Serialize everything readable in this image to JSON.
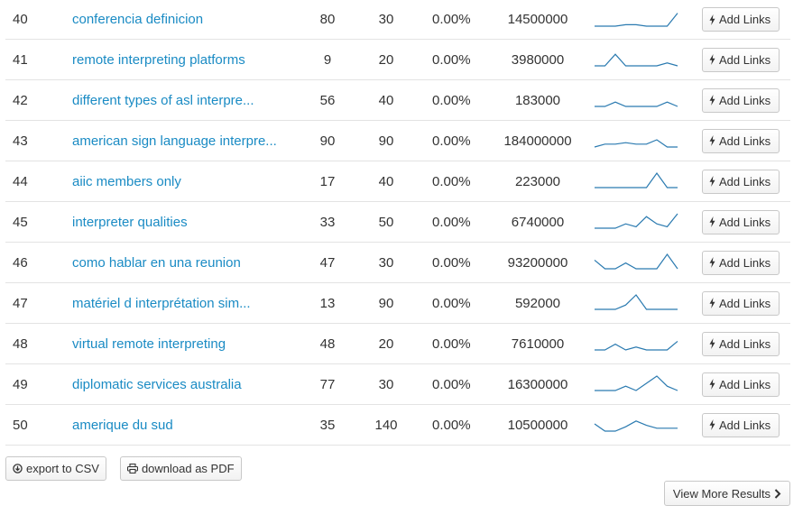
{
  "rows": [
    {
      "num": "40",
      "keyword": "conferencia definicion",
      "a": "80",
      "b": "30",
      "pct": "0.00%",
      "volume": "14500000",
      "trend": [
        0,
        0,
        0,
        0.1,
        0.1,
        0,
        0,
        0,
        0.9
      ]
    },
    {
      "num": "41",
      "keyword": "remote interpreting platforms",
      "a": "9",
      "b": "20",
      "pct": "0.00%",
      "volume": "3980000",
      "trend": [
        0,
        0,
        0.8,
        0,
        0,
        0,
        0,
        0.2,
        0
      ]
    },
    {
      "num": "42",
      "keyword": "different types of asl interpre...",
      "a": "56",
      "b": "40",
      "pct": "0.00%",
      "volume": "183000",
      "trend": [
        0,
        0,
        0.3,
        0,
        0,
        0,
        0,
        0.3,
        0
      ]
    },
    {
      "num": "43",
      "keyword": "american sign language interpre...",
      "a": "90",
      "b": "90",
      "pct": "0.00%",
      "volume": "184000000",
      "trend": [
        0,
        0.2,
        0.2,
        0.3,
        0.2,
        0.2,
        0.5,
        0,
        0
      ]
    },
    {
      "num": "44",
      "keyword": "aiic members only",
      "a": "17",
      "b": "40",
      "pct": "0.00%",
      "volume": "223000",
      "trend": [
        0,
        0,
        0,
        0,
        0,
        0,
        1,
        0,
        0
      ]
    },
    {
      "num": "45",
      "keyword": "interpreter qualities",
      "a": "33",
      "b": "50",
      "pct": "0.00%",
      "volume": "6740000",
      "trend": [
        0,
        0,
        0,
        0.3,
        0.1,
        0.8,
        0.3,
        0.1,
        1
      ]
    },
    {
      "num": "46",
      "keyword": "como hablar en una reunion",
      "a": "47",
      "b": "30",
      "pct": "0.00%",
      "volume": "93200000",
      "trend": [
        0.6,
        0,
        0,
        0.4,
        0,
        0,
        0,
        1,
        0
      ]
    },
    {
      "num": "47",
      "keyword": "matériel d interprétation sim...",
      "a": "13",
      "b": "90",
      "pct": "0.00%",
      "volume": "592000",
      "trend": [
        0,
        0,
        0,
        0.3,
        1,
        0,
        0,
        0,
        0
      ]
    },
    {
      "num": "48",
      "keyword": "virtual remote interpreting",
      "a": "48",
      "b": "20",
      "pct": "0.00%",
      "volume": "7610000",
      "trend": [
        0,
        0,
        0.4,
        0,
        0.2,
        0,
        0,
        0,
        0.6
      ]
    },
    {
      "num": "49",
      "keyword": "diplomatic services australia",
      "a": "77",
      "b": "30",
      "pct": "0.00%",
      "volume": "16300000",
      "trend": [
        0,
        0,
        0,
        0.3,
        0,
        0.5,
        1,
        0.3,
        0
      ]
    },
    {
      "num": "50",
      "keyword": "amerique du sud",
      "a": "35",
      "b": "140",
      "pct": "0.00%",
      "volume": "10500000",
      "trend": [
        0.5,
        0,
        0,
        0.3,
        0.7,
        0.4,
        0.2,
        0.2,
        0.2
      ]
    }
  ],
  "add_links_label": "Add Links",
  "export_csv_label": "export to CSV",
  "download_pdf_label": "download as PDF",
  "view_more_label": "View More Results",
  "icons": {
    "add_links": "bolt-icon",
    "export_csv": "circle-arrow-down-icon",
    "download_pdf": "printer-icon",
    "view_more": "chevron-right-icon"
  },
  "colors": {
    "link": "#1a8bc4",
    "sparkline": "#2a7ab0"
  }
}
